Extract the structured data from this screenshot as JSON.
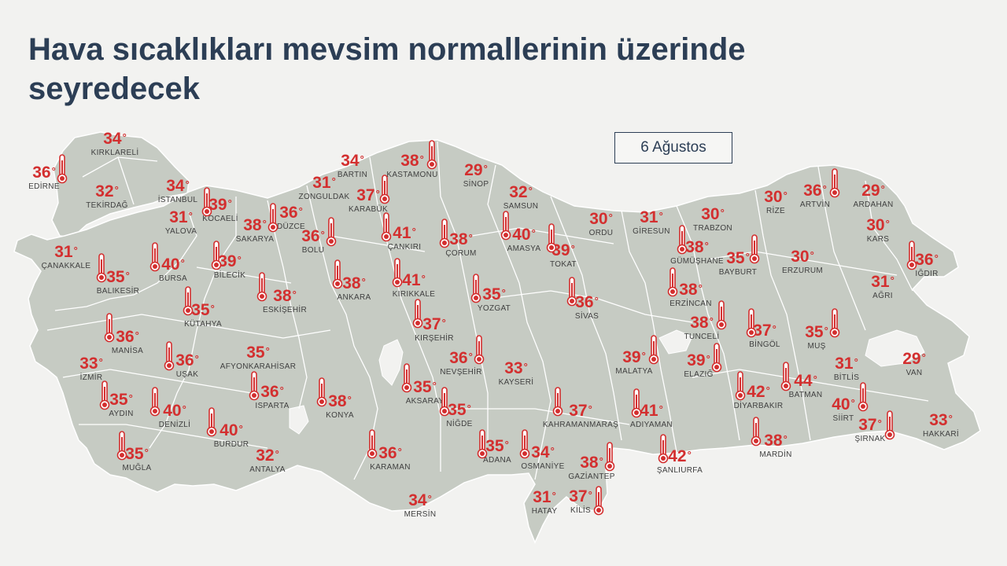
{
  "title": "Hava sıcaklıkları mevsim normallerinin üzerinde seyredecek",
  "date": "6 Ağustos",
  "colors": {
    "temp": "#d32f2f",
    "title": "#2c3e55",
    "land": "#c6cbc3",
    "border": "#ffffff",
    "water": "#f2f2f0"
  },
  "icon": "thermometer-icon",
  "cities": [
    {
      "name": "KIRKLARELİ",
      "temp": "34"
    },
    {
      "name": "EDİRNE",
      "temp": "36"
    },
    {
      "name": "TEKİRDAĞ",
      "temp": "32"
    },
    {
      "name": "İSTANBUL",
      "temp": "34"
    },
    {
      "name": "YALOVA",
      "temp": "31"
    },
    {
      "name": "KOCAELİ",
      "temp": "39"
    },
    {
      "name": "SAKARYA",
      "temp": "38"
    },
    {
      "name": "DÜZCE",
      "temp": "36"
    },
    {
      "name": "ZONGULDAK",
      "temp": "31"
    },
    {
      "name": "BARTIN",
      "temp": "34"
    },
    {
      "name": "KARABÜK",
      "temp": "37"
    },
    {
      "name": "KASTAMONU",
      "temp": "38"
    },
    {
      "name": "SİNOP",
      "temp": "29"
    },
    {
      "name": "SAMSUN",
      "temp": "32"
    },
    {
      "name": "ORDU",
      "temp": "30"
    },
    {
      "name": "GİRESUN",
      "temp": "31"
    },
    {
      "name": "TRABZON",
      "temp": "30"
    },
    {
      "name": "RİZE",
      "temp": "30"
    },
    {
      "name": "ARTVİN",
      "temp": "36"
    },
    {
      "name": "ARDAHAN",
      "temp": "29"
    },
    {
      "name": "KARS",
      "temp": "30"
    },
    {
      "name": "IĞDIR",
      "temp": "36"
    },
    {
      "name": "AĞRI",
      "temp": "31"
    },
    {
      "name": "ERZURUM",
      "temp": "30"
    },
    {
      "name": "BAYBURT",
      "temp": "35"
    },
    {
      "name": "GÜMÜŞHANE",
      "temp": "38"
    },
    {
      "name": "ERZİNCAN",
      "temp": "38"
    },
    {
      "name": "TOKAT",
      "temp": "39"
    },
    {
      "name": "AMASYA",
      "temp": "40"
    },
    {
      "name": "ÇORUM",
      "temp": "38"
    },
    {
      "name": "ÇANKIRI",
      "temp": "41"
    },
    {
      "name": "BOLU",
      "temp": "36"
    },
    {
      "name": "ÇANAKKALE",
      "temp": "31"
    },
    {
      "name": "BALIKESİR",
      "temp": "35"
    },
    {
      "name": "BURSA",
      "temp": "40"
    },
    {
      "name": "BİLECİK",
      "temp": "39"
    },
    {
      "name": "KÜTAHYA",
      "temp": "35"
    },
    {
      "name": "ESKİŞEHİR",
      "temp": "38"
    },
    {
      "name": "ANKARA",
      "temp": "38"
    },
    {
      "name": "KIRIKKALE",
      "temp": "41"
    },
    {
      "name": "YOZGAT",
      "temp": "35"
    },
    {
      "name": "SİVAS",
      "temp": "36"
    },
    {
      "name": "TUNCELİ",
      "temp": "38"
    },
    {
      "name": "BİNGÖL",
      "temp": "37"
    },
    {
      "name": "MUŞ",
      "temp": "35"
    },
    {
      "name": "MANİSA",
      "temp": "36"
    },
    {
      "name": "İZMİR",
      "temp": "33"
    },
    {
      "name": "UŞAK",
      "temp": "36"
    },
    {
      "name": "AFYONKARAHİSAR",
      "temp": "35"
    },
    {
      "name": "KIRŞEHİR",
      "temp": "37"
    },
    {
      "name": "NEVŞEHİR",
      "temp": "36"
    },
    {
      "name": "KAYSERİ",
      "temp": "33"
    },
    {
      "name": "MALATYA",
      "temp": "39"
    },
    {
      "name": "ELAZIĞ",
      "temp": "39"
    },
    {
      "name": "BİTLİS",
      "temp": "31"
    },
    {
      "name": "VAN",
      "temp": "29"
    },
    {
      "name": "AYDIN",
      "temp": "35"
    },
    {
      "name": "DENİZLİ",
      "temp": "40"
    },
    {
      "name": "ISPARTA",
      "temp": "36"
    },
    {
      "name": "KONYA",
      "temp": "38"
    },
    {
      "name": "AKSARAY",
      "temp": "35"
    },
    {
      "name": "NİĞDE",
      "temp": "35"
    },
    {
      "name": "KAHRAMANMARAŞ",
      "temp": "37"
    },
    {
      "name": "ADIYAMAN",
      "temp": "41"
    },
    {
      "name": "DİYARBAKIR",
      "temp": "42"
    },
    {
      "name": "BATMAN",
      "temp": "44"
    },
    {
      "name": "SİİRT",
      "temp": "40"
    },
    {
      "name": "ŞIRNAK",
      "temp": "37"
    },
    {
      "name": "HAKKARİ",
      "temp": "33"
    },
    {
      "name": "MUĞLA",
      "temp": "35"
    },
    {
      "name": "BURDUR",
      "temp": "40"
    },
    {
      "name": "ANTALYA",
      "temp": "32"
    },
    {
      "name": "KARAMAN",
      "temp": "36"
    },
    {
      "name": "ADANA",
      "temp": "35"
    },
    {
      "name": "OSMANİYE",
      "temp": "34"
    },
    {
      "name": "GAZİANTEP",
      "temp": "38"
    },
    {
      "name": "ŞANLIURFA",
      "temp": "42"
    },
    {
      "name": "MARDİN",
      "temp": "38"
    },
    {
      "name": "MERSİN",
      "temp": "34"
    },
    {
      "name": "HATAY",
      "temp": "31"
    },
    {
      "name": "KİLİS",
      "temp": "37"
    }
  ]
}
